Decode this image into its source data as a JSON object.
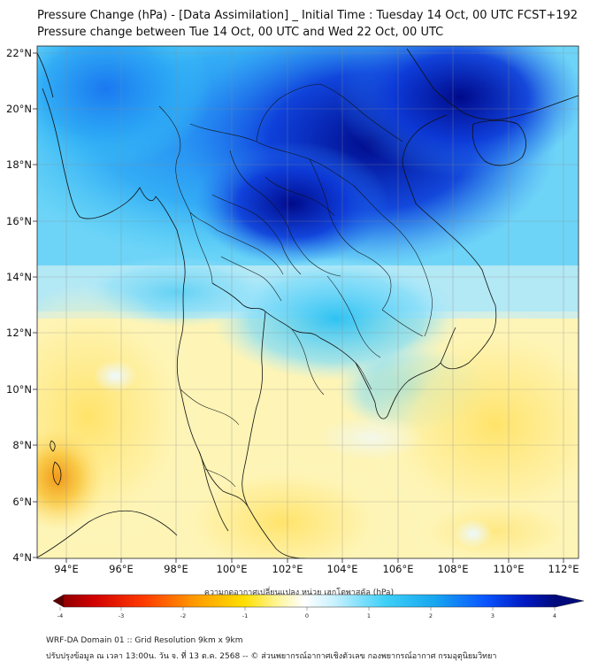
{
  "title": {
    "line1": "Pressure Change (hPa) - [Data Assimilation] _ Initial Time : Tuesday 14 Oct, 00 UTC FCST+192",
    "line2": "Pressure change between Tue 14 Oct, 00 UTC and Wed 22 Oct, 00 UTC"
  },
  "map": {
    "lon_labels": [
      "94°E",
      "96°E",
      "98°E",
      "100°E",
      "102°E",
      "104°E",
      "106°E",
      "108°E",
      "110°E",
      "112°E"
    ],
    "lat_labels": [
      "22°N",
      "20°N",
      "18°N",
      "16°N",
      "14°N",
      "12°N",
      "10°N",
      "8°N",
      "6°N",
      "4°N"
    ],
    "grid": true
  },
  "colorbar": {
    "title": "ความกดอากาศเปลี่ยนแปลง หน่วย เฮกโตพาสคัล (hPa)",
    "ticks": [
      "-4",
      "-3",
      "-2",
      "-1",
      "0",
      "1",
      "2",
      "3",
      "4"
    ],
    "colors": {
      "deep_red": "#7a0000",
      "red": "#ff2a00",
      "orange": "#ff9900",
      "yellow": "#ffe600",
      "pale_yellow": "#fff7b0",
      "white": "#ffffff",
      "light_cyan": "#b3ecff",
      "cyan": "#1cc3f5",
      "blue": "#0a55ff",
      "navy": "#000a7a"
    }
  },
  "footer": {
    "line1": "WRF-DA Domain 01 :: Grid Resolution 9km x 9km",
    "line2": "ปรับปรุงข้อมูล ณ เวลา 13:00น. วัน จ. ที่ 13 ต.ค. 2568 -- © ส่วนพยากรณ์อากาศเชิงตัวเลข กองพยากรณ์อากาศ กรมอุตุนิยมวิทยา"
  }
}
